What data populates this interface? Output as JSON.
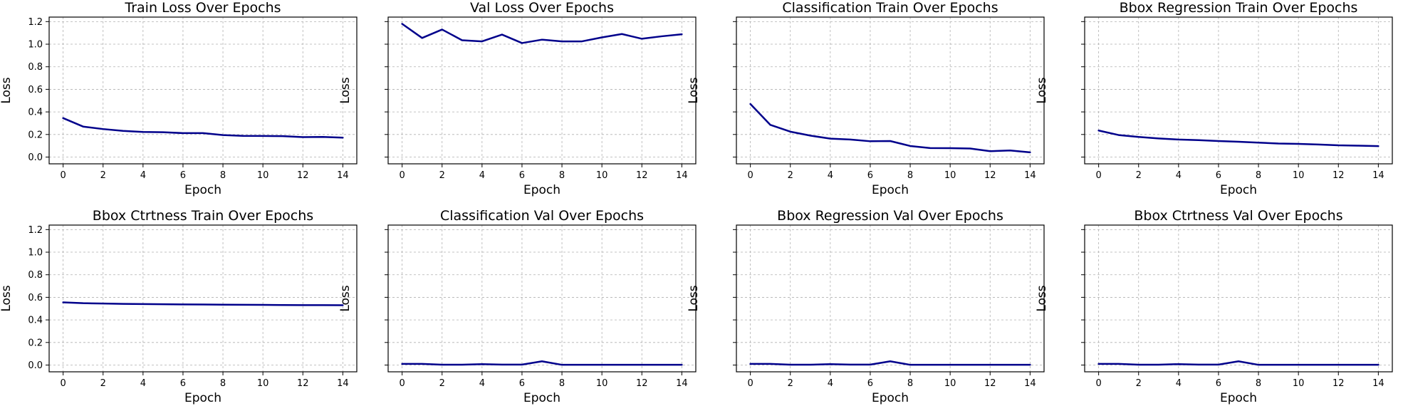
{
  "chart_data": [
    {
      "type": "line",
      "title": "Train Loss Over Epochs",
      "xlabel": "Epoch",
      "ylabel": "Loss",
      "x": [
        0,
        1,
        2,
        3,
        4,
        5,
        6,
        7,
        8,
        9,
        10,
        11,
        12,
        13,
        14
      ],
      "series": [
        {
          "values": [
            0.345,
            0.27,
            0.248,
            0.232,
            0.222,
            0.22,
            0.212,
            0.212,
            0.195,
            0.188,
            0.187,
            0.185,
            0.177,
            0.178,
            0.172
          ]
        }
      ],
      "xticks": [
        0,
        2,
        4,
        6,
        8,
        10,
        12,
        14
      ],
      "yticks": [
        0.0,
        0.2,
        0.4,
        0.6,
        0.8,
        1.0,
        1.2
      ],
      "show_ytick_labels": true,
      "xlim": [
        -0.7,
        14.7
      ],
      "ylim": [
        -0.06,
        1.24
      ],
      "grid": true
    },
    {
      "type": "line",
      "title": "Val Loss Over Epochs",
      "xlabel": "Epoch",
      "ylabel": "Loss",
      "x": [
        0,
        1,
        2,
        3,
        4,
        5,
        6,
        7,
        8,
        9,
        10,
        11,
        12,
        13,
        14
      ],
      "series": [
        {
          "values": [
            1.18,
            1.055,
            1.13,
            1.035,
            1.025,
            1.085,
            1.01,
            1.04,
            1.025,
            1.025,
            1.06,
            1.09,
            1.048,
            1.07,
            1.088
          ]
        }
      ],
      "xticks": [
        0,
        2,
        4,
        6,
        8,
        10,
        12,
        14
      ],
      "yticks": [
        0.0,
        0.2,
        0.4,
        0.6,
        0.8,
        1.0,
        1.2
      ],
      "show_ytick_labels": false,
      "xlim": [
        -0.7,
        14.7
      ],
      "ylim": [
        -0.06,
        1.24
      ],
      "grid": true
    },
    {
      "type": "line",
      "title": "Classification Train Over Epochs",
      "xlabel": "Epoch",
      "ylabel": "Loss",
      "x": [
        0,
        1,
        2,
        3,
        4,
        5,
        6,
        7,
        8,
        9,
        10,
        11,
        12,
        13,
        14
      ],
      "series": [
        {
          "values": [
            0.47,
            0.285,
            0.225,
            0.19,
            0.163,
            0.155,
            0.14,
            0.142,
            0.098,
            0.08,
            0.079,
            0.076,
            0.052,
            0.058,
            0.042
          ]
        }
      ],
      "xticks": [
        0,
        2,
        4,
        6,
        8,
        10,
        12,
        14
      ],
      "yticks": [
        0.0,
        0.2,
        0.4,
        0.6,
        0.8,
        1.0,
        1.2
      ],
      "show_ytick_labels": false,
      "xlim": [
        -0.7,
        14.7
      ],
      "ylim": [
        -0.06,
        1.24
      ],
      "grid": true
    },
    {
      "type": "line",
      "title": "Bbox Regression Train Over Epochs",
      "xlabel": "Epoch",
      "ylabel": "Loss",
      "x": [
        0,
        1,
        2,
        3,
        4,
        5,
        6,
        7,
        8,
        9,
        10,
        11,
        12,
        13,
        14
      ],
      "series": [
        {
          "values": [
            0.235,
            0.195,
            0.178,
            0.165,
            0.155,
            0.15,
            0.142,
            0.136,
            0.128,
            0.12,
            0.117,
            0.111,
            0.104,
            0.101,
            0.097
          ]
        }
      ],
      "xticks": [
        0,
        2,
        4,
        6,
        8,
        10,
        12,
        14
      ],
      "yticks": [
        0.0,
        0.2,
        0.4,
        0.6,
        0.8,
        1.0,
        1.2
      ],
      "show_ytick_labels": false,
      "xlim": [
        -0.7,
        14.7
      ],
      "ylim": [
        -0.06,
        1.24
      ],
      "grid": true
    },
    {
      "type": "line",
      "title": "Bbox Ctrtness Train Over Epochs",
      "xlabel": "Epoch",
      "ylabel": "Loss",
      "x": [
        0,
        1,
        2,
        3,
        4,
        5,
        6,
        7,
        8,
        9,
        10,
        11,
        12,
        13,
        14
      ],
      "series": [
        {
          "values": [
            0.555,
            0.548,
            0.545,
            0.542,
            0.54,
            0.539,
            0.537,
            0.536,
            0.535,
            0.534,
            0.533,
            0.532,
            0.531,
            0.531,
            0.53
          ]
        }
      ],
      "xticks": [
        0,
        2,
        4,
        6,
        8,
        10,
        12,
        14
      ],
      "yticks": [
        0.0,
        0.2,
        0.4,
        0.6,
        0.8,
        1.0,
        1.2
      ],
      "show_ytick_labels": true,
      "xlim": [
        -0.7,
        14.7
      ],
      "ylim": [
        -0.06,
        1.24
      ],
      "grid": true
    },
    {
      "type": "line",
      "title": "Classification Val Over Epochs",
      "xlabel": "Epoch",
      "ylabel": "Loss",
      "x": [
        0,
        1,
        2,
        3,
        4,
        5,
        6,
        7,
        8,
        9,
        10,
        11,
        12,
        13,
        14
      ],
      "series": [
        {
          "values": [
            0.01,
            0.01,
            0.003,
            0.003,
            0.008,
            0.004,
            0.004,
            0.033,
            0.002,
            0.002,
            0.002,
            0.002,
            0.002,
            0.002,
            0.002
          ]
        }
      ],
      "xticks": [
        0,
        2,
        4,
        6,
        8,
        10,
        12,
        14
      ],
      "yticks": [
        0.0,
        0.2,
        0.4,
        0.6,
        0.8,
        1.0,
        1.2
      ],
      "show_ytick_labels": false,
      "xlim": [
        -0.7,
        14.7
      ],
      "ylim": [
        -0.06,
        1.24
      ],
      "grid": true
    },
    {
      "type": "line",
      "title": "Bbox Regression Val Over Epochs",
      "xlabel": "Epoch",
      "ylabel": "Loss",
      "x": [
        0,
        1,
        2,
        3,
        4,
        5,
        6,
        7,
        8,
        9,
        10,
        11,
        12,
        13,
        14
      ],
      "series": [
        {
          "values": [
            0.01,
            0.01,
            0.003,
            0.003,
            0.008,
            0.004,
            0.004,
            0.033,
            0.002,
            0.002,
            0.002,
            0.002,
            0.002,
            0.002,
            0.002
          ]
        }
      ],
      "xticks": [
        0,
        2,
        4,
        6,
        8,
        10,
        12,
        14
      ],
      "yticks": [
        0.0,
        0.2,
        0.4,
        0.6,
        0.8,
        1.0,
        1.2
      ],
      "show_ytick_labels": false,
      "xlim": [
        -0.7,
        14.7
      ],
      "ylim": [
        -0.06,
        1.24
      ],
      "grid": true
    },
    {
      "type": "line",
      "title": "Bbox Ctrtness Val Over Epochs",
      "xlabel": "Epoch",
      "ylabel": "Loss",
      "x": [
        0,
        1,
        2,
        3,
        4,
        5,
        6,
        7,
        8,
        9,
        10,
        11,
        12,
        13,
        14
      ],
      "series": [
        {
          "values": [
            0.01,
            0.01,
            0.003,
            0.003,
            0.008,
            0.004,
            0.004,
            0.033,
            0.002,
            0.002,
            0.002,
            0.002,
            0.002,
            0.002,
            0.002
          ]
        }
      ],
      "xticks": [
        0,
        2,
        4,
        6,
        8,
        10,
        12,
        14
      ],
      "yticks": [
        0.0,
        0.2,
        0.4,
        0.6,
        0.8,
        1.0,
        1.2
      ],
      "show_ytick_labels": false,
      "xlim": [
        -0.7,
        14.7
      ],
      "ylim": [
        -0.06,
        1.24
      ],
      "grid": true
    }
  ],
  "colors": {
    "line": "#00008b",
    "grid": "#b0b0b0",
    "axis": "#000000",
    "background": "#ffffff"
  }
}
